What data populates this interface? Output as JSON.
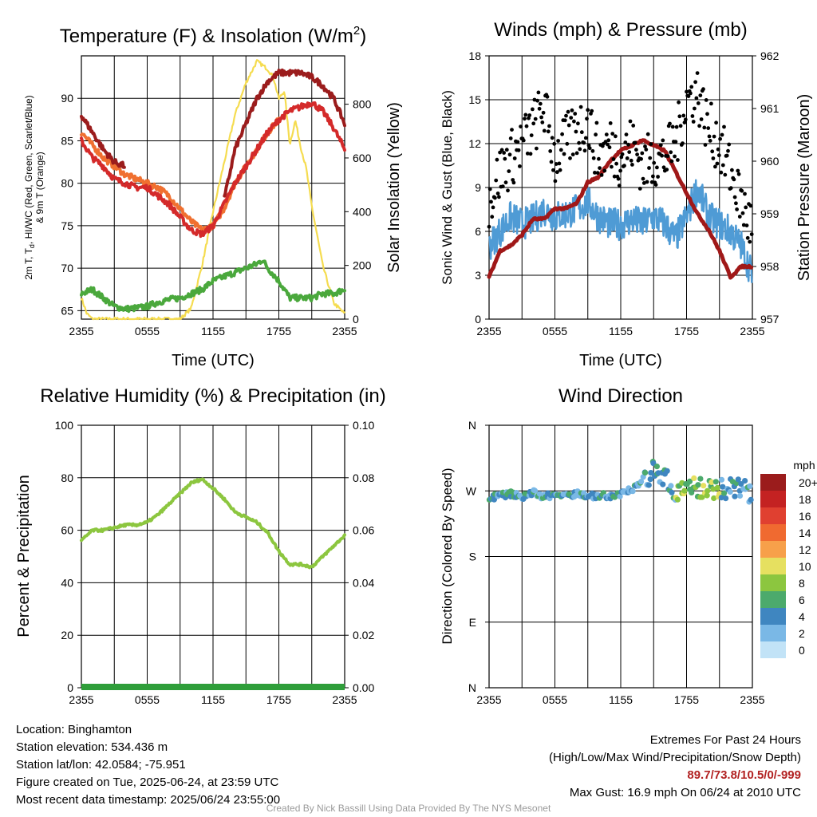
{
  "chart_data": [
    {
      "type": "line",
      "title": "Temperature (F) & Insolation (W/m²)",
      "xlabel": "Time (UTC)",
      "ylabel_left_lines": [
        "2m T, T",
        "& 9m T (Orange)"
      ],
      "ylabel_left_sub": "d",
      "ylabel_left_mid": ", HI/WC (Red, Green, Scarlet/Blue)",
      "ylabel_right": "Solar Insolation (Yellow)",
      "x_ticks": [
        "2355",
        "0555",
        "1155",
        "1755",
        "2355"
      ],
      "ylim": [
        64,
        95
      ],
      "y_ticks": [
        65,
        70,
        75,
        80,
        85,
        90
      ],
      "y2lim": [
        0,
        980
      ],
      "y2_ticks": [
        0,
        200,
        400,
        600,
        800
      ],
      "x_hours": [
        0,
        24
      ],
      "series": [
        {
          "color": "#9b1c1c",
          "x": [
            0,
            1,
            2,
            3,
            4,
            4.3,
            13,
            14,
            15,
            16,
            17,
            18,
            19,
            20,
            21,
            22,
            23,
            24
          ],
          "y": [
            88,
            86,
            84,
            82.5,
            82,
            null,
            78,
            84,
            87,
            90,
            92,
            93,
            93,
            93,
            92.5,
            91.5,
            90,
            87
          ],
          "gap_after": [
            4
          ]
        },
        {
          "color": "#f07030",
          "x": [
            0,
            1,
            2,
            3,
            4,
            5,
            6,
            7,
            8,
            9,
            10,
            11,
            12,
            13,
            14,
            15,
            16,
            17,
            18
          ],
          "y": [
            86,
            84.5,
            83,
            82,
            81,
            80.5,
            80,
            79.5,
            78.5,
            77,
            75.5,
            74.5,
            75,
            77,
            80,
            82,
            84,
            86,
            87.5
          ]
        },
        {
          "color": "#d42a2a",
          "x": [
            0,
            1,
            2,
            3,
            4,
            5,
            6,
            7,
            8,
            9,
            10,
            11,
            12,
            13,
            14,
            15,
            16,
            17,
            18,
            19,
            20,
            21,
            22,
            23,
            24
          ],
          "y": [
            85,
            83,
            82,
            80.5,
            80,
            79.5,
            79.5,
            78.5,
            77.5,
            76,
            74.5,
            74,
            75,
            77.5,
            80,
            82,
            84,
            86,
            87.5,
            88.5,
            89,
            89.5,
            88.5,
            86.5,
            84
          ]
        },
        {
          "color": "#4aa83c",
          "x": [
            0,
            1,
            2,
            3,
            4,
            5,
            6,
            7,
            8,
            9,
            10,
            11,
            12,
            13,
            14,
            15,
            16,
            16.5,
            17,
            18,
            19,
            20,
            21,
            22,
            23,
            24
          ],
          "y": [
            67,
            67.5,
            66.5,
            65.5,
            65.2,
            65.3,
            65.5,
            66,
            66.3,
            66.5,
            67,
            67.5,
            68.5,
            69,
            69.5,
            70,
            70.5,
            71,
            70,
            68.5,
            66.5,
            66.5,
            66.5,
            67,
            67,
            67.5
          ]
        },
        {
          "color": "#f5dc50",
          "axis": "right",
          "x": [
            0,
            0.5,
            1,
            2,
            3,
            4,
            5,
            6,
            7,
            8,
            9,
            10,
            11,
            12,
            13,
            14,
            15,
            16,
            17,
            17.5,
            18,
            18.5,
            19,
            19.5,
            20,
            20.5,
            21,
            22,
            23,
            24
          ],
          "y": [
            80,
            20,
            0,
            0,
            0,
            0,
            0,
            0,
            0,
            0,
            0,
            40,
            200,
            400,
            580,
            760,
            880,
            960,
            930,
            900,
            820,
            850,
            650,
            740,
            640,
            560,
            420,
            200,
            60,
            20
          ]
        }
      ]
    },
    {
      "type": "scatter",
      "title": "Winds (mph) & Pressure (mb)",
      "xlabel": "Time (UTC)",
      "ylabel": "Sonic Wind & Gust (Blue, Black)",
      "ylabel_right": "Station Pressure (Maroon)",
      "x_ticks": [
        "2355",
        "0555",
        "1155",
        "1755",
        "2355"
      ],
      "ylim": [
        0,
        18
      ],
      "y_ticks": [
        0,
        3,
        6,
        9,
        12,
        15,
        18
      ],
      "y2lim": [
        957,
        962
      ],
      "y2_ticks": [
        957,
        958,
        959,
        960,
        961,
        962
      ],
      "series": [
        {
          "name_hidden": "pressure",
          "color": "#a01818",
          "axis": "right",
          "x": [
            0,
            1,
            2,
            3,
            4,
            5,
            6,
            7,
            8,
            9,
            10,
            11,
            12,
            13,
            14,
            15,
            16,
            17,
            18,
            19,
            20,
            21,
            22,
            23,
            24
          ],
          "y": [
            957.8,
            958.3,
            958.4,
            958.6,
            958.9,
            958.9,
            959.1,
            959.1,
            959.2,
            959.6,
            959.7,
            960.0,
            960.2,
            960.3,
            960.4,
            960.3,
            960.2,
            959.8,
            959.4,
            959.0,
            958.7,
            958.3,
            957.8,
            958.0,
            958.0
          ]
        },
        {
          "name_hidden": "sonic_wind",
          "color": "#4f9bd5",
          "x": [
            0,
            1,
            2,
            3,
            4,
            5,
            6,
            7,
            8,
            9,
            10,
            11,
            12,
            13,
            14,
            15,
            16,
            17,
            18,
            19,
            20,
            21,
            22,
            23,
            24
          ],
          "y": [
            5,
            6,
            7,
            6.5,
            6.8,
            7.5,
            7,
            7.2,
            7.5,
            8,
            7,
            6.5,
            6.5,
            6.8,
            6.5,
            7,
            6.5,
            5.5,
            7,
            9,
            7,
            6.5,
            6,
            5,
            3
          ]
        },
        {
          "name_hidden": "gust",
          "color": "#000000",
          "x": [
            0,
            1,
            2,
            3,
            4,
            5,
            6,
            7,
            8,
            9,
            10,
            11,
            12,
            13,
            14,
            15,
            16,
            17,
            18,
            19,
            20,
            21,
            22,
            23,
            24
          ],
          "y": [
            8,
            10,
            11,
            12,
            13,
            14.5,
            11,
            12,
            13,
            13.5,
            11,
            12,
            11,
            12,
            10.5,
            11,
            11,
            12,
            15,
            15.5,
            13,
            12,
            10,
            8,
            6
          ]
        }
      ]
    },
    {
      "type": "line",
      "title": "Relative Humidity (%) & Precipitation (in)",
      "xlabel": "",
      "ylabel": "Percent & Precipitation",
      "x_ticks": [
        "2355",
        "0555",
        "1155",
        "1755",
        "2355"
      ],
      "ylim": [
        0,
        100
      ],
      "y_ticks": [
        0,
        20,
        40,
        60,
        80,
        100
      ],
      "y2lim": [
        0,
        0.1
      ],
      "y2_ticks": [
        "0.00",
        "0.02",
        "0.04",
        "0.06",
        "0.08",
        "0.10"
      ],
      "series": [
        {
          "color": "#8cc63f",
          "x": [
            0,
            1,
            2,
            3,
            4,
            5,
            6,
            7,
            8,
            9,
            10,
            11,
            12,
            13,
            14,
            15,
            16,
            17,
            18,
            19,
            20,
            21,
            22,
            23,
            24
          ],
          "y": [
            56,
            60,
            60,
            61,
            62,
            62,
            63,
            66,
            70,
            74,
            78,
            79.5,
            76,
            72,
            67,
            65,
            63,
            59,
            52,
            47,
            47,
            46,
            50,
            54,
            58
          ]
        },
        {
          "color": "#2f9e3a",
          "x": [
            0,
            24
          ],
          "y": [
            0,
            0
          ]
        }
      ]
    },
    {
      "type": "scatter",
      "title": "Wind Direction",
      "xlabel": "",
      "ylabel": "Direction (Colored By Speed)",
      "x_ticks": [
        "2355",
        "0555",
        "1155",
        "1755",
        "2355"
      ],
      "y_ticks": [
        "N",
        "E",
        "S",
        "W",
        "N"
      ],
      "ylim": [
        0,
        360
      ],
      "colorbar_title": "mph",
      "colorbar_labels": [
        "20+",
        "18",
        "16",
        "14",
        "12",
        "10",
        "8",
        "6",
        "4",
        "2",
        "0"
      ],
      "colorbar_colors": [
        "#9b1c1c",
        "#c42222",
        "#e04030",
        "#f06a30",
        "#f7a04a",
        "#e6e060",
        "#8cc63f",
        "#4caa6c",
        "#3f86c0",
        "#7ab8e6",
        "#c2e3f7"
      ],
      "series": [
        {
          "x": [
            0,
            1,
            2,
            3,
            4,
            5,
            6,
            7,
            8,
            9,
            10,
            11,
            12,
            13,
            14,
            15,
            16,
            17,
            18,
            19,
            20,
            21,
            22,
            23,
            24
          ],
          "y": [
            260,
            264,
            266,
            262,
            268,
            262,
            265,
            263,
            267,
            262,
            264,
            263,
            265,
            272,
            285,
            300,
            290,
            262,
            280,
            275,
            272,
            276,
            272,
            278,
            262
          ]
        }
      ]
    }
  ],
  "info": {
    "location": "Location: Binghamton",
    "elevation": "Station elevation: 534.436 m",
    "latlon": "Station lat/lon: 42.0584; -75.951",
    "created": "Figure created on Tue, 2025-06-24, at 23:59 UTC",
    "recent": "Most recent data timestamp: 2025/06/24 23:55:00"
  },
  "extremes": {
    "title": "Extremes For Past 24 Hours",
    "subtitle": "(High/Low/Max Wind/Precipitation/Snow Depth)",
    "values": "89.7/73.8/10.5/0/-999",
    "gust": "Max Gust: 16.9 mph On 06/24 at 2010 UTC"
  },
  "credit": "Created By Nick Bassill Using Data Provided By The NYS Mesonet"
}
